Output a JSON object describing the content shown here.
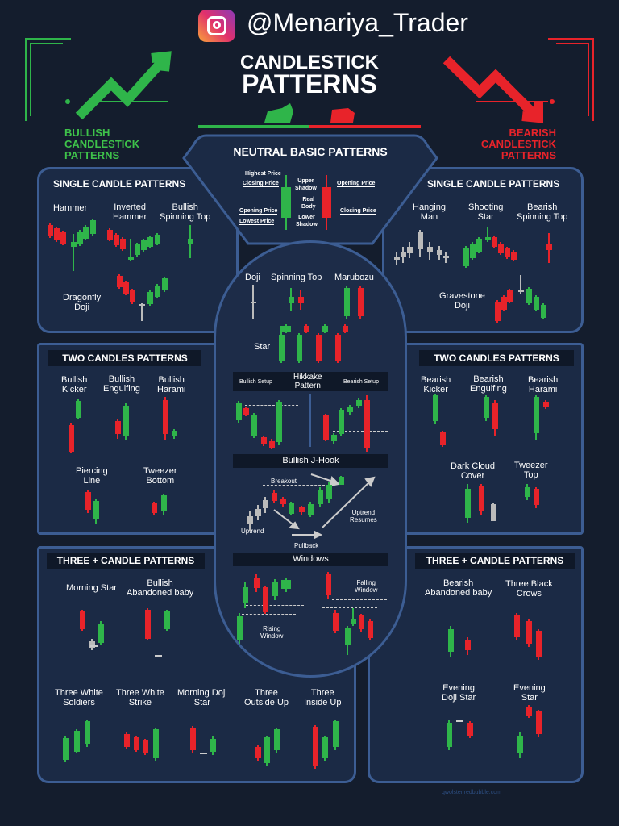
{
  "header": {
    "handle": "@Menariya_Trader",
    "title_line1": "CANDLESTICK",
    "title_line2": "PATTERNS",
    "bullish_label": "BULLISH\nCANDLESTICK\nPATTERNS",
    "bearish_label": "BEARISH\nCANDLESTICK\nPATTERNS"
  },
  "colors": {
    "bull": "#2fb54a",
    "bear": "#e8232a",
    "panel": "#1b2a45",
    "border": "#3c5d93",
    "background": "#141d2d"
  },
  "neutral": {
    "title": "NEUTRAL BASIC PATTERNS",
    "highest": "Highest Price",
    "closing_l": "Closing Price",
    "opening_l": "Opening Price",
    "lowest": "Lowest Price",
    "upper": "Upper\nShadow",
    "body": "Real\nBody",
    "lower": "Lower\nShadow",
    "opening_r": "Opening Price",
    "closing_r": "Closing Price"
  },
  "center": {
    "doji": "Doji",
    "spinning": "Spinning Top",
    "marubozu": "Marubozu",
    "star": "Star",
    "bullish_setup": "Bullish Setup",
    "hikkake": "Hikkake\nPattern",
    "bearish_setup": "Bearish Setup",
    "jhook": "Bullish J-Hook",
    "breakout": "Breakout",
    "uptrend": "Uptrend",
    "pullback": "Pullback",
    "resumes": "Uptrend\nResumes",
    "windows": "Windows",
    "rising": "Rising\nWindow",
    "falling": "Falling\nWindow"
  },
  "bull_single": {
    "title": "SINGLE CANDLE PATTERNS",
    "items": [
      "Hammer",
      "Inverted\nHammer",
      "Bullish\nSpinning Top",
      "Dragonfly\nDoji"
    ]
  },
  "bear_single": {
    "title": "SINGLE CANDLE PATTERNS",
    "items": [
      "Hanging\nMan",
      "Shooting\nStar",
      "Bearish\nSpinning Top",
      "Gravestone\nDoji"
    ]
  },
  "bull_two": {
    "title": "TWO CANDLES PATTERNS",
    "items": [
      "Bullish\nKicker",
      "Bullish\nEngulfing",
      "Bullish\nHarami",
      "Piercing\nLine",
      "Tweezer\nBottom"
    ]
  },
  "bear_two": {
    "title": "TWO CANDLES PATTERNS",
    "items": [
      "Bearish\nKicker",
      "Bearish\nEngulfing",
      "Bearish\nHarami",
      "Dark Cloud\nCover",
      "Tweezer\nTop"
    ]
  },
  "bull_three": {
    "title": "THREE + CANDLE PATTERNS",
    "items": [
      "Morning Star",
      "Bullish\nAbandoned baby",
      "Three White\nSoldiers",
      "Three White\nStrike",
      "Morning Doji\nStar",
      "Three\nOutside Up",
      "Three\nInside Up"
    ]
  },
  "bear_three": {
    "title": "THREE + CANDLE PATTERNS",
    "items": [
      "Bearish\nAbandoned baby",
      "Three Black\nCrows",
      "Evening\nDoji Star",
      "Evening\nStar"
    ]
  },
  "footer": {
    "credit": "qwolster.redbubble.com"
  }
}
